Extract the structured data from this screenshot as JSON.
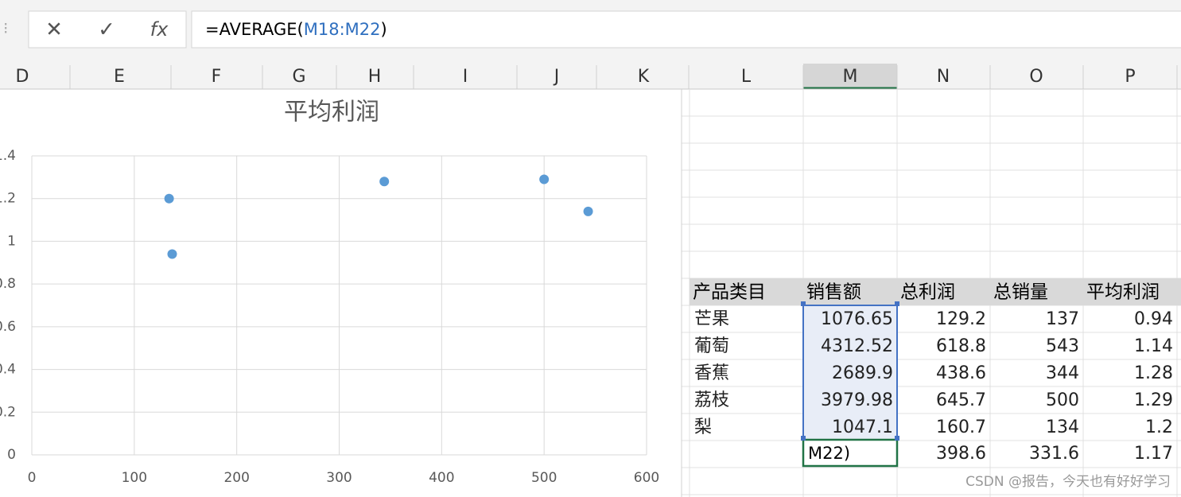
{
  "formula_bar": {
    "prefix": "=AVERAGE(",
    "ref": "M18:M22",
    "suffix": ")"
  },
  "columns": [
    "D",
    "E",
    "F",
    "G",
    "H",
    "I",
    "J",
    "K",
    "L",
    "M",
    "N",
    "O",
    "P"
  ],
  "chart_data": {
    "type": "scatter",
    "title": "平均利润",
    "series": [
      {
        "color": "#5b9bd5",
        "x": [
          137,
          543,
          344,
          500,
          134
        ],
        "values": [
          0.94,
          1.14,
          1.28,
          1.29,
          1.2
        ]
      }
    ],
    "xlim": [
      0,
      600
    ],
    "xticks": [
      0,
      100,
      200,
      300,
      400,
      500,
      600
    ],
    "ylim": [
      0,
      1.4
    ],
    "yticks": [
      0,
      0.2,
      0.4,
      0.6,
      0.8,
      1,
      1.2,
      1.4
    ],
    "grid": true
  },
  "table": {
    "header": [
      "产品类目",
      "销售额",
      "总利润",
      "总销量",
      "平均利润"
    ],
    "rows": [
      [
        "芒果",
        "1076.65",
        "129.2",
        "137",
        "0.94"
      ],
      [
        "葡萄",
        "4312.52",
        "618.8",
        "543",
        "1.14"
      ],
      [
        "香蕉",
        "2689.9",
        "438.6",
        "344",
        "1.28"
      ],
      [
        "荔枝",
        "3979.98",
        "645.7",
        "500",
        "1.29"
      ],
      [
        "梨",
        "1047.1",
        "160.7",
        "134",
        "1.2"
      ]
    ],
    "total": {
      "editing": "M22)",
      "values": [
        "398.6",
        "331.6",
        "1.17"
      ]
    }
  },
  "watermark": "CSDN @报告，今天也有好好学习"
}
